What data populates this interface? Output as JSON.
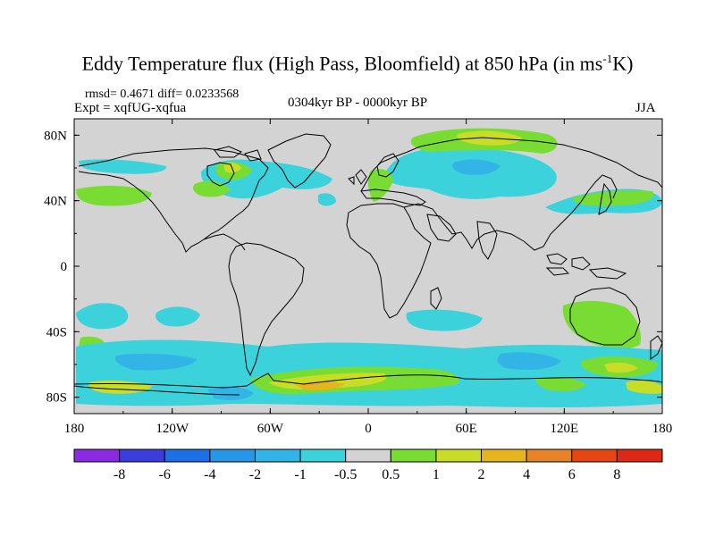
{
  "title": {
    "pre": "Eddy Temperature flux (High Pass, Bloomfield) at 850 hPa (in ms",
    "sup": "-1",
    "post": "K)"
  },
  "stats": "rmsd= 0.4671 diff= 0.0233568",
  "experiment": "Expt = xqfUG-xqfua",
  "period": "0304kyr BP - 0000kyr BP",
  "season": "JJA",
  "map": {
    "lon_labels": [
      "180",
      "120W",
      "60W",
      "0",
      "60E",
      "120E",
      "180"
    ],
    "lat_labels": [
      "80N",
      "40N",
      "0",
      "40S",
      "80S"
    ],
    "land_color": "#d3d3d3"
  },
  "colorbar": {
    "levels": [
      "-8",
      "-6",
      "-4",
      "-2",
      "-1",
      "-0.5",
      "0.5",
      "1",
      "2",
      "4",
      "6",
      "8"
    ],
    "colors": [
      "#8a2be2",
      "#3c3cdc",
      "#1e6ee6",
      "#2896e6",
      "#32b4e6",
      "#3cd2dc",
      "#d3d3d3",
      "#78dc32",
      "#c8dc28",
      "#e6b41e",
      "#e68228",
      "#e64614",
      "#dc2814"
    ]
  }
}
